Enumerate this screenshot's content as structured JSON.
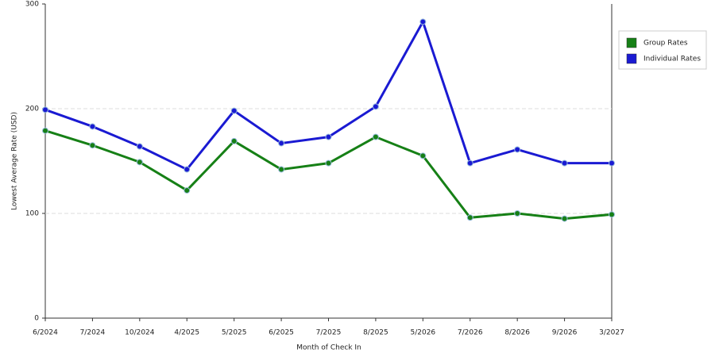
{
  "chart_data": {
    "type": "line",
    "x_label": "Month of Check In",
    "y_label": "Lowest Average Rate (USD)",
    "categories": [
      "6/2024",
      "7/2024",
      "10/2024",
      "4/2025",
      "5/2025",
      "6/2025",
      "7/2025",
      "8/2025",
      "5/2026",
      "7/2026",
      "8/2026",
      "9/2026",
      "3/2027"
    ],
    "series": [
      {
        "name": "Group Rates",
        "color": "#168016",
        "values": [
          179,
          165,
          149,
          122,
          169,
          142,
          148,
          173,
          155,
          96,
          100,
          95,
          99
        ]
      },
      {
        "name": "Individual Rates",
        "color": "#1a1ad2",
        "values": [
          199,
          183,
          164,
          142,
          198,
          167,
          173,
          202,
          283,
          148,
          161,
          148,
          148
        ]
      }
    ],
    "ylim": [
      0,
      300
    ],
    "yticks": [
      0,
      100,
      200,
      300
    ],
    "grid": true,
    "legend": "right"
  }
}
